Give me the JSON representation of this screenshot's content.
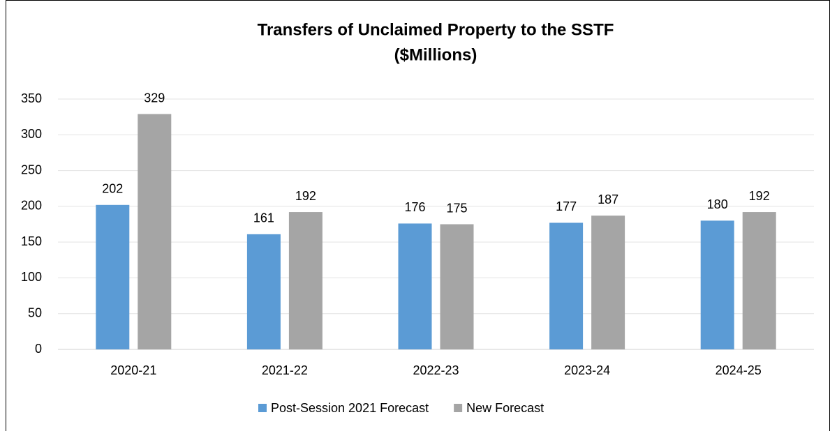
{
  "chart_data": {
    "type": "bar",
    "title": "Transfers of Unclaimed Property to the SSTF",
    "subtitle": "($Millions)",
    "categories": [
      "2020-21",
      "2021-22",
      "2022-23",
      "2023-24",
      "2024-25"
    ],
    "series": [
      {
        "name": "Post-Session 2021 Forecast",
        "color": "#5b9bd5",
        "values": [
          202,
          161,
          176,
          177,
          180
        ]
      },
      {
        "name": "New Forecast",
        "color": "#a5a5a5",
        "values": [
          329,
          192,
          175,
          187,
          192
        ]
      }
    ],
    "ylim": [
      0,
      350
    ],
    "yticks": [
      0,
      50,
      100,
      150,
      200,
      250,
      300,
      350
    ],
    "grid": true,
    "legend": "bottom"
  }
}
